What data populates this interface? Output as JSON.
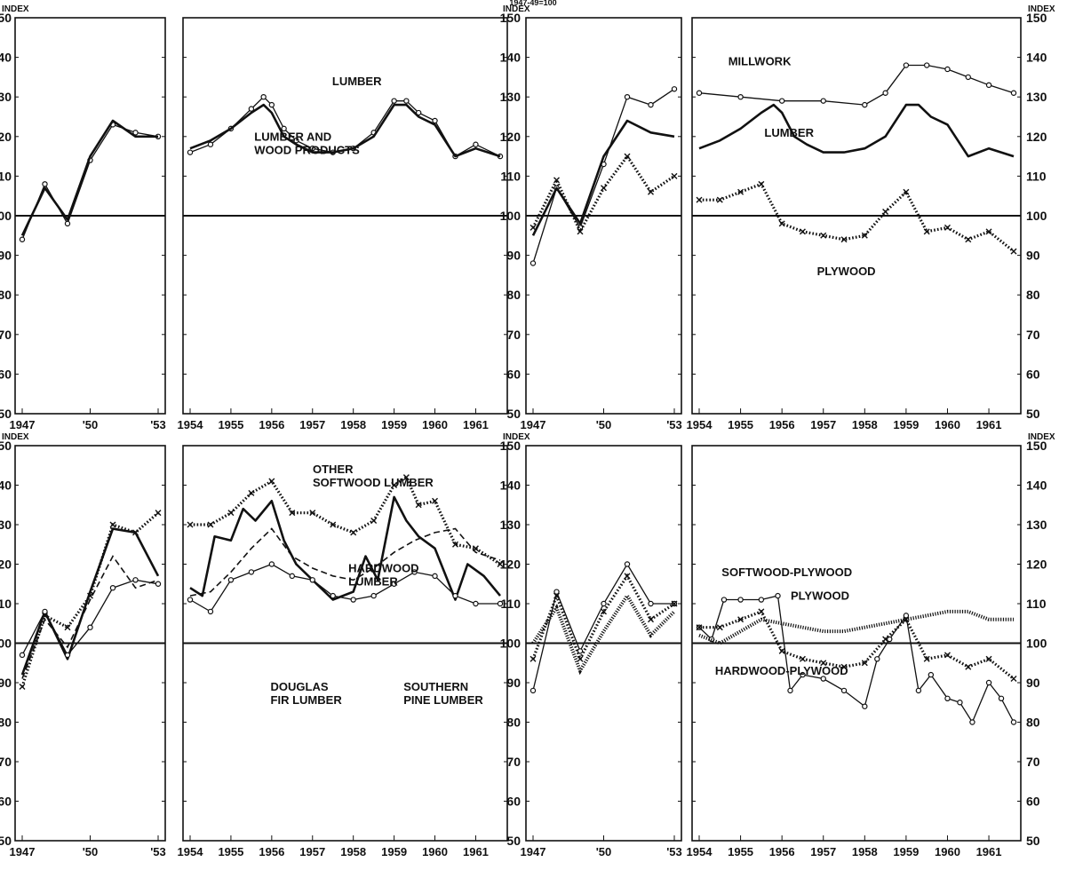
{
  "header": {
    "top_text": "1947-49=100",
    "index_label": "INDEX"
  },
  "chart_data": [
    {
      "type": "line",
      "panel": "top-left",
      "xlabel": "",
      "ylabel": "INDEX",
      "ylim": [
        50,
        150
      ],
      "xticks": [
        "1947",
        "'50",
        "'53"
      ],
      "series": [
        {
          "name": "LUMBER AND WOOD PRODUCTS",
          "style": "circle",
          "x": [
            1947,
            1948,
            1949,
            1950,
            1951,
            1952,
            1953
          ],
          "values": [
            94,
            108,
            98,
            114,
            123,
            121,
            120
          ]
        },
        {
          "name": "LUMBER",
          "style": "solid",
          "x": [
            1947,
            1948,
            1949,
            1950,
            1951,
            1952,
            1953
          ],
          "values": [
            95,
            107,
            99,
            115,
            124,
            120,
            120
          ]
        }
      ]
    },
    {
      "type": "line",
      "panel": "top-middle-left",
      "xlabel": "",
      "ylabel": "INDEX",
      "ylim": [
        50,
        150
      ],
      "xticks": [
        "1954",
        "1955",
        "1956",
        "1957",
        "1958",
        "1959",
        "1960",
        "1961"
      ],
      "annotations": [
        "LUMBER",
        "LUMBER AND WOOD PRODUCTS"
      ],
      "series": [
        {
          "name": "LUMBER AND WOOD PRODUCTS",
          "style": "circle",
          "x": [
            1954.0,
            1954.5,
            1955.0,
            1955.5,
            1955.8,
            1956.0,
            1956.3,
            1956.6,
            1957.0,
            1957.5,
            1958.0,
            1958.5,
            1959.0,
            1959.3,
            1959.6,
            1960.0,
            1960.5,
            1961.0,
            1961.6
          ],
          "values": [
            116,
            118,
            122,
            127,
            130,
            128,
            122,
            119,
            117,
            116,
            117,
            121,
            129,
            129,
            126,
            124,
            115,
            118,
            115
          ]
        },
        {
          "name": "LUMBER",
          "style": "solid",
          "x": [
            1954.0,
            1954.5,
            1955.0,
            1955.5,
            1955.8,
            1956.0,
            1956.3,
            1956.6,
            1957.0,
            1957.5,
            1958.0,
            1958.5,
            1959.0,
            1959.3,
            1959.6,
            1960.0,
            1960.5,
            1961.0,
            1961.6
          ],
          "values": [
            117,
            119,
            122,
            126,
            128,
            126,
            120,
            118,
            116,
            116,
            117,
            120,
            128,
            128,
            125,
            123,
            115,
            117,
            115
          ]
        }
      ]
    },
    {
      "type": "line",
      "panel": "top-middle-right",
      "xlabel": "",
      "ylabel": "INDEX",
      "ylim": [
        50,
        150
      ],
      "xticks": [
        "1947",
        "'50",
        "'53"
      ],
      "series": [
        {
          "name": "MILLWORK",
          "style": "circle",
          "x": [
            1947,
            1948,
            1949,
            1950,
            1951,
            1952,
            1953
          ],
          "values": [
            88,
            107,
            97,
            113,
            130,
            128,
            132
          ]
        },
        {
          "name": "LUMBER",
          "style": "solid",
          "x": [
            1947,
            1948,
            1949,
            1950,
            1951,
            1952,
            1953
          ],
          "values": [
            95,
            107,
            98,
            115,
            124,
            121,
            120
          ]
        },
        {
          "name": "PLYWOOD",
          "style": "cross",
          "x": [
            1947,
            1948,
            1949,
            1950,
            1951,
            1952,
            1953
          ],
          "values": [
            97,
            109,
            96,
            107,
            115,
            106,
            110
          ]
        }
      ]
    },
    {
      "type": "line",
      "panel": "top-right",
      "xlabel": "",
      "ylabel": "INDEX",
      "ylim": [
        50,
        150
      ],
      "xticks": [
        "1954",
        "1955",
        "1956",
        "1957",
        "1958",
        "1959",
        "1960",
        "1961"
      ],
      "annotations": [
        "MILLWORK",
        "LUMBER",
        "PLYWOOD"
      ],
      "series": [
        {
          "name": "MILLWORK",
          "style": "circle",
          "x": [
            1954.0,
            1955.0,
            1956.0,
            1957.0,
            1958.0,
            1958.5,
            1959.0,
            1959.5,
            1960.0,
            1960.5,
            1961.0,
            1961.6
          ],
          "values": [
            131,
            130,
            129,
            129,
            128,
            131,
            138,
            138,
            137,
            135,
            133,
            131
          ]
        },
        {
          "name": "LUMBER",
          "style": "solid",
          "x": [
            1954.0,
            1954.5,
            1955.0,
            1955.5,
            1955.8,
            1956.0,
            1956.3,
            1956.6,
            1957.0,
            1957.5,
            1958.0,
            1958.5,
            1959.0,
            1959.3,
            1959.6,
            1960.0,
            1960.5,
            1961.0,
            1961.6
          ],
          "values": [
            117,
            119,
            122,
            126,
            128,
            126,
            120,
            118,
            116,
            116,
            117,
            120,
            128,
            128,
            125,
            123,
            115,
            117,
            115
          ]
        },
        {
          "name": "PLYWOOD",
          "style": "cross",
          "x": [
            1954.0,
            1954.5,
            1955.0,
            1955.5,
            1956.0,
            1956.5,
            1957.0,
            1957.5,
            1958.0,
            1958.5,
            1959.0,
            1959.5,
            1960.0,
            1960.5,
            1961.0,
            1961.6
          ],
          "values": [
            104,
            104,
            106,
            108,
            98,
            96,
            95,
            94,
            95,
            101,
            106,
            96,
            97,
            94,
            96,
            91
          ]
        }
      ]
    },
    {
      "type": "line",
      "panel": "bottom-left",
      "xlabel": "",
      "ylabel": "INDEX",
      "ylim": [
        50,
        150
      ],
      "xticks": [
        "1947",
        "'50",
        "'53"
      ],
      "series": [
        {
          "name": "OTHER SOFTWOOD LUMBER",
          "style": "cross",
          "x": [
            1947,
            1948,
            1949,
            1950,
            1951,
            1952,
            1953
          ],
          "values": [
            89,
            107,
            104,
            112,
            130,
            128,
            133
          ]
        },
        {
          "name": "DOUGLAS FIR LUMBER",
          "style": "solid",
          "x": [
            1947,
            1948,
            1949,
            1950,
            1951,
            1952,
            1953
          ],
          "values": [
            92,
            108,
            96,
            113,
            129,
            128,
            117
          ]
        },
        {
          "name": "HARDWOOD LUMBER",
          "style": "dashed",
          "x": [
            1947,
            1948,
            1949,
            1950,
            1951,
            1952,
            1953
          ],
          "values": [
            91,
            106,
            99,
            111,
            122,
            114,
            116
          ]
        },
        {
          "name": "SOUTHERN PINE LUMBER",
          "style": "circle",
          "x": [
            1947,
            1948,
            1949,
            1950,
            1951,
            1952,
            1953
          ],
          "values": [
            97,
            108,
            97,
            104,
            114,
            116,
            115
          ]
        }
      ]
    },
    {
      "type": "line",
      "panel": "bottom-middle-left",
      "xlabel": "",
      "ylabel": "INDEX",
      "ylim": [
        50,
        150
      ],
      "xticks": [
        "1954",
        "1955",
        "1956",
        "1957",
        "1958",
        "1959",
        "1960",
        "1961"
      ],
      "annotations": [
        "OTHER SOFTWOOD LUMBER",
        "HARDWOOD LUMBER",
        "DOUGLAS FIR LUMBER",
        "SOUTHERN PINE LUMBER"
      ],
      "series": [
        {
          "name": "OTHER SOFTWOOD LUMBER",
          "style": "cross",
          "x": [
            1954.0,
            1954.5,
            1955.0,
            1955.5,
            1956.0,
            1956.5,
            1957.0,
            1957.5,
            1958.0,
            1958.5,
            1959.0,
            1959.3,
            1959.6,
            1960.0,
            1960.5,
            1961.0,
            1961.6
          ],
          "values": [
            130,
            130,
            133,
            138,
            141,
            133,
            133,
            130,
            128,
            131,
            140,
            142,
            135,
            136,
            125,
            124,
            120
          ]
        },
        {
          "name": "DOUGLAS FIR LUMBER",
          "style": "solid",
          "x": [
            1954.0,
            1954.3,
            1954.6,
            1955.0,
            1955.3,
            1955.6,
            1956.0,
            1956.3,
            1956.6,
            1957.0,
            1957.5,
            1958.0,
            1958.3,
            1958.6,
            1959.0,
            1959.3,
            1959.6,
            1960.0,
            1960.5,
            1960.8,
            1961.2,
            1961.6
          ],
          "values": [
            114,
            112,
            127,
            126,
            134,
            131,
            136,
            126,
            120,
            116,
            111,
            113,
            122,
            116,
            137,
            131,
            127,
            124,
            111,
            120,
            117,
            112
          ]
        },
        {
          "name": "HARDWOOD LUMBER",
          "style": "dashed",
          "x": [
            1954.0,
            1954.5,
            1955.0,
            1955.5,
            1956.0,
            1956.5,
            1957.0,
            1957.5,
            1958.0,
            1958.5,
            1959.0,
            1959.5,
            1960.0,
            1960.5,
            1961.0,
            1961.6
          ],
          "values": [
            112,
            113,
            118,
            124,
            129,
            122,
            119,
            117,
            116,
            119,
            123,
            126,
            128,
            129,
            123,
            121
          ]
        },
        {
          "name": "SOUTHERN PINE LUMBER",
          "style": "circle",
          "x": [
            1954.0,
            1954.5,
            1955.0,
            1955.5,
            1956.0,
            1956.5,
            1957.0,
            1957.5,
            1958.0,
            1958.5,
            1959.0,
            1959.5,
            1960.0,
            1960.5,
            1961.0,
            1961.6
          ],
          "values": [
            111,
            108,
            116,
            118,
            120,
            117,
            116,
            112,
            111,
            112,
            115,
            118,
            117,
            112,
            110,
            110
          ]
        }
      ]
    },
    {
      "type": "line",
      "panel": "bottom-middle-right",
      "xlabel": "",
      "ylabel": "INDEX",
      "ylim": [
        50,
        150
      ],
      "xticks": [
        "1947",
        "'50",
        "'53"
      ],
      "series": [
        {
          "name": "SOFTWOOD-PLYWOOD",
          "style": "circle",
          "x": [
            1947,
            1948,
            1949,
            1950,
            1951,
            1952,
            1953
          ],
          "values": [
            88,
            113,
            98,
            110,
            120,
            110,
            110
          ]
        },
        {
          "name": "PLYWOOD",
          "style": "cross",
          "x": [
            1947,
            1948,
            1949,
            1950,
            1951,
            1952,
            1953
          ],
          "values": [
            96,
            112,
            96,
            108,
            117,
            106,
            110
          ]
        },
        {
          "name": "HARDWOOD-PLYWOOD",
          "style": "hatched",
          "x": [
            1947,
            1948,
            1949,
            1950,
            1951,
            1952,
            1953
          ],
          "values": [
            100,
            109,
            93,
            103,
            112,
            102,
            108
          ]
        }
      ]
    },
    {
      "type": "line",
      "panel": "bottom-right",
      "xlabel": "",
      "ylabel": "INDEX",
      "ylim": [
        50,
        150
      ],
      "xticks": [
        "1954",
        "1955",
        "1956",
        "1957",
        "1958",
        "1959",
        "1960",
        "1961"
      ],
      "annotations": [
        "SOFTWOOD-PLYWOOD",
        "PLYWOOD",
        "HARDWOOD-PLYWOOD"
      ],
      "series": [
        {
          "name": "SOFTWOOD-PLYWOOD",
          "style": "circle",
          "x": [
            1954.0,
            1954.3,
            1954.6,
            1955.0,
            1955.5,
            1955.9,
            1956.2,
            1956.5,
            1957.0,
            1957.5,
            1958.0,
            1958.3,
            1958.6,
            1959.0,
            1959.3,
            1959.6,
            1960.0,
            1960.3,
            1960.6,
            1961.0,
            1961.3,
            1961.6
          ],
          "values": [
            104,
            101,
            111,
            111,
            111,
            112,
            88,
            92,
            91,
            88,
            84,
            96,
            101,
            107,
            88,
            92,
            86,
            85,
            80,
            90,
            86,
            80
          ]
        },
        {
          "name": "PLYWOOD",
          "style": "cross",
          "x": [
            1954.0,
            1954.5,
            1955.0,
            1955.5,
            1956.0,
            1956.5,
            1957.0,
            1957.5,
            1958.0,
            1958.5,
            1959.0,
            1959.5,
            1960.0,
            1960.5,
            1961.0,
            1961.6
          ],
          "values": [
            104,
            104,
            106,
            108,
            98,
            96,
            95,
            94,
            95,
            101,
            106,
            96,
            97,
            94,
            96,
            91
          ]
        },
        {
          "name": "HARDWOOD-PLYWOOD",
          "style": "hatched",
          "x": [
            1954.0,
            1954.5,
            1955.0,
            1955.5,
            1956.0,
            1956.5,
            1957.0,
            1957.5,
            1958.0,
            1958.5,
            1959.0,
            1959.5,
            1960.0,
            1960.5,
            1961.0,
            1961.6
          ],
          "values": [
            102,
            100,
            103,
            106,
            105,
            104,
            103,
            103,
            104,
            105,
            106,
            107,
            108,
            108,
            106,
            106
          ]
        }
      ]
    }
  ]
}
